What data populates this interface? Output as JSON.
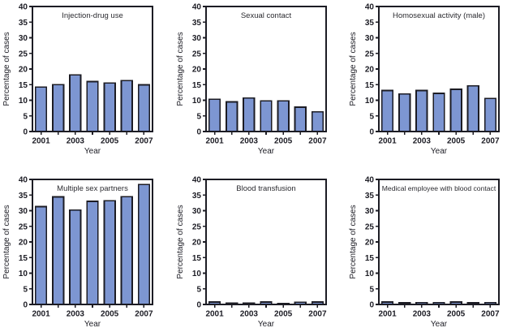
{
  "figure": {
    "background": "#ffffff",
    "bar_fill": "#7d96d2",
    "bar_stroke": "#1c1c24",
    "axis_color": "#1c1c24"
  },
  "chart_data": [
    {
      "type": "bar",
      "title": "Injection-drug use",
      "categories": [
        "2001",
        "2002",
        "2003",
        "2004",
        "2005",
        "2006",
        "2007"
      ],
      "values": [
        14.2,
        15.0,
        18.1,
        16.0,
        15.5,
        16.3,
        14.9
      ],
      "xlabel": "Year",
      "ylabel": "Percentage of cases",
      "ylim": [
        0,
        40
      ],
      "ytick_step": 5,
      "xtick_labels_shown": [
        "2001",
        "2003",
        "2005",
        "2007"
      ],
      "grid": false,
      "legend": false
    },
    {
      "type": "bar",
      "title": "Sexual contact",
      "categories": [
        "2001",
        "2002",
        "2003",
        "2004",
        "2005",
        "2006",
        "2007"
      ],
      "values": [
        10.3,
        9.5,
        10.7,
        9.8,
        9.8,
        7.8,
        6.3
      ],
      "xlabel": "Year",
      "ylabel": "Percentage of cases",
      "ylim": [
        0,
        40
      ],
      "ytick_step": 5,
      "xtick_labels_shown": [
        "2001",
        "2003",
        "2005",
        "2007"
      ],
      "grid": false,
      "legend": false
    },
    {
      "type": "bar",
      "title": "Homosexual activity (male)",
      "categories": [
        "2001",
        "2002",
        "2003",
        "2004",
        "2005",
        "2006",
        "2007"
      ],
      "values": [
        13.1,
        12.0,
        13.1,
        12.2,
        13.5,
        14.6,
        10.6
      ],
      "xlabel": "Year",
      "ylabel": "Percentage of cases",
      "ylim": [
        0,
        40
      ],
      "ytick_step": 5,
      "xtick_labels_shown": [
        "2001",
        "2003",
        "2005",
        "2007"
      ],
      "grid": false,
      "legend": false
    },
    {
      "type": "bar",
      "title": "Multiple sex partners",
      "categories": [
        "2001",
        "2002",
        "2003",
        "2004",
        "2005",
        "2006",
        "2007"
      ],
      "values": [
        31.3,
        34.4,
        30.2,
        33.0,
        33.2,
        34.5,
        38.4
      ],
      "xlabel": "Year",
      "ylabel": "Percentage of cases",
      "ylim": [
        0,
        40
      ],
      "ytick_step": 5,
      "xtick_labels_shown": [
        "2001",
        "2003",
        "2005",
        "2007"
      ],
      "grid": false,
      "legend": false
    },
    {
      "type": "bar",
      "title": "Blood transfusion",
      "categories": [
        "2001",
        "2002",
        "2003",
        "2004",
        "2005",
        "2006",
        "2007"
      ],
      "values": [
        0.8,
        0.4,
        0.4,
        0.8,
        0.3,
        0.7,
        0.8
      ],
      "xlabel": "Year",
      "ylabel": "Percentage of cases",
      "ylim": [
        0,
        40
      ],
      "ytick_step": 5,
      "xtick_labels_shown": [
        "2001",
        "2003",
        "2005",
        "2007"
      ],
      "grid": false,
      "legend": false
    },
    {
      "type": "bar",
      "title": "Medical employee with blood contact",
      "categories": [
        "2001",
        "2002",
        "2003",
        "2004",
        "2005",
        "2006",
        "2007"
      ],
      "values": [
        0.8,
        0.5,
        0.6,
        0.6,
        0.8,
        0.5,
        0.6
      ],
      "xlabel": "Year",
      "ylabel": "Percentage of cases",
      "ylim": [
        0,
        40
      ],
      "ytick_step": 5,
      "xtick_labels_shown": [
        "2001",
        "2003",
        "2005",
        "2007"
      ],
      "grid": false,
      "legend": false
    }
  ]
}
